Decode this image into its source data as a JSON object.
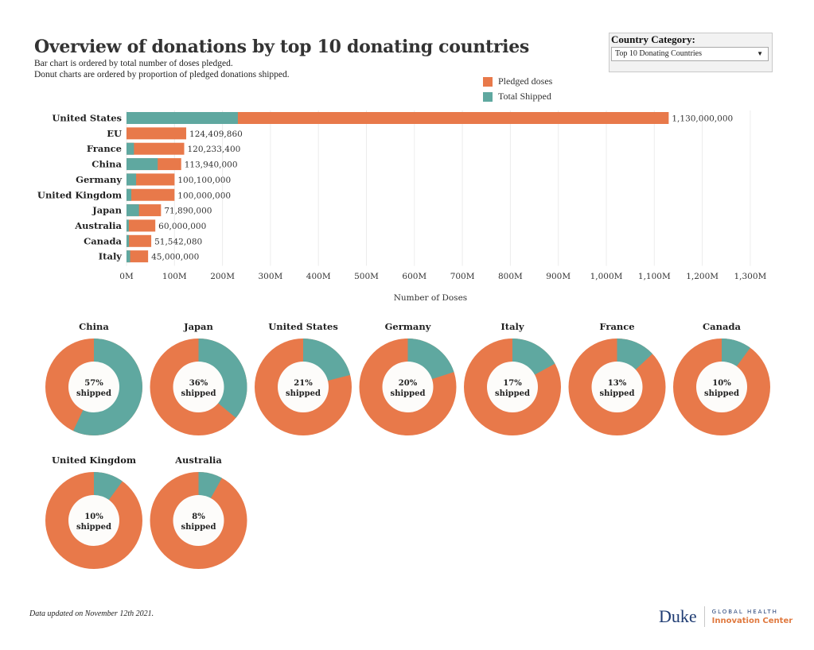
{
  "header": {
    "title": "Overview of donations by top 10 donating countries",
    "subtitle_1": "Bar chart is ordered by total number of doses pledged.",
    "subtitle_2": "Donut charts are ordered by proportion of pledged donations shipped."
  },
  "filter": {
    "label": "Country Category:",
    "selected": "Top 10 Donating Countries",
    "arrow_icon": "▼"
  },
  "colors": {
    "pledged": "#e8794a",
    "shipped": "#5fa8a0",
    "donut_hole": "#fdfcfa",
    "gridline": "#ececec"
  },
  "legend": [
    {
      "label": "Pledged doses",
      "color": "#e8794a"
    },
    {
      "label": "Total Shipped",
      "color": "#5fa8a0"
    }
  ],
  "chart_data": [
    {
      "type": "bar",
      "orientation": "horizontal",
      "stacked_overlay": true,
      "categories": [
        "United States",
        "EU",
        "France",
        "China",
        "Germany",
        "United Kingdom",
        "Japan",
        "Australia",
        "Canada",
        "Italy"
      ],
      "series": [
        {
          "name": "Pledged doses",
          "values": [
            1130000000,
            124409860,
            120233400,
            113940000,
            100100000,
            100000000,
            71890000,
            60000000,
            51542080,
            45000000
          ]
        },
        {
          "name": "Total Shipped",
          "values": [
            232000000,
            0,
            15500000,
            65000000,
            20000000,
            10000000,
            26000000,
            4800000,
            5200000,
            7600000
          ]
        }
      ],
      "data_labels": [
        "1,130,000,000",
        "124,409,860",
        "120,233,400",
        "113,940,000",
        "100,100,000",
        "100,000,000",
        "71,890,000",
        "60,000,000",
        "51,542,080",
        "45,000,000"
      ],
      "xlabel": "Number of Doses",
      "xlim": [
        0,
        1300000000
      ],
      "x_ticks": [
        "0M",
        "100M",
        "200M",
        "300M",
        "400M",
        "500M",
        "600M",
        "700M",
        "800M",
        "900M",
        "1,000M",
        "1,100M",
        "1,200M",
        "1,300M"
      ],
      "grid": true,
      "legend_position": "top-right"
    },
    {
      "type": "pie",
      "variant": "donut",
      "donuts": [
        {
          "country": "China",
          "shipped_pct": 57,
          "label": "57%",
          "sublabel": "shipped"
        },
        {
          "country": "Japan",
          "shipped_pct": 36,
          "label": "36%",
          "sublabel": "shipped"
        },
        {
          "country": "United States",
          "shipped_pct": 21,
          "label": "21%",
          "sublabel": "shipped"
        },
        {
          "country": "Germany",
          "shipped_pct": 20,
          "label": "20%",
          "sublabel": "shipped"
        },
        {
          "country": "Italy",
          "shipped_pct": 17,
          "label": "17%",
          "sublabel": "shipped"
        },
        {
          "country": "France",
          "shipped_pct": 13,
          "label": "13%",
          "sublabel": "shipped"
        },
        {
          "country": "Canada",
          "shipped_pct": 10,
          "label": "10%",
          "sublabel": "shipped"
        },
        {
          "country": "United Kingdom",
          "shipped_pct": 10,
          "label": "10%",
          "sublabel": "shipped"
        },
        {
          "country": "Australia",
          "shipped_pct": 8,
          "label": "8%",
          "sublabel": "shipped"
        }
      ]
    }
  ],
  "footer": {
    "note": "Data updated on November 12th 2021.",
    "logo_name": "Duke",
    "logo_line1": "GLOBAL HEALTH",
    "logo_line2": "Innovation Center"
  }
}
